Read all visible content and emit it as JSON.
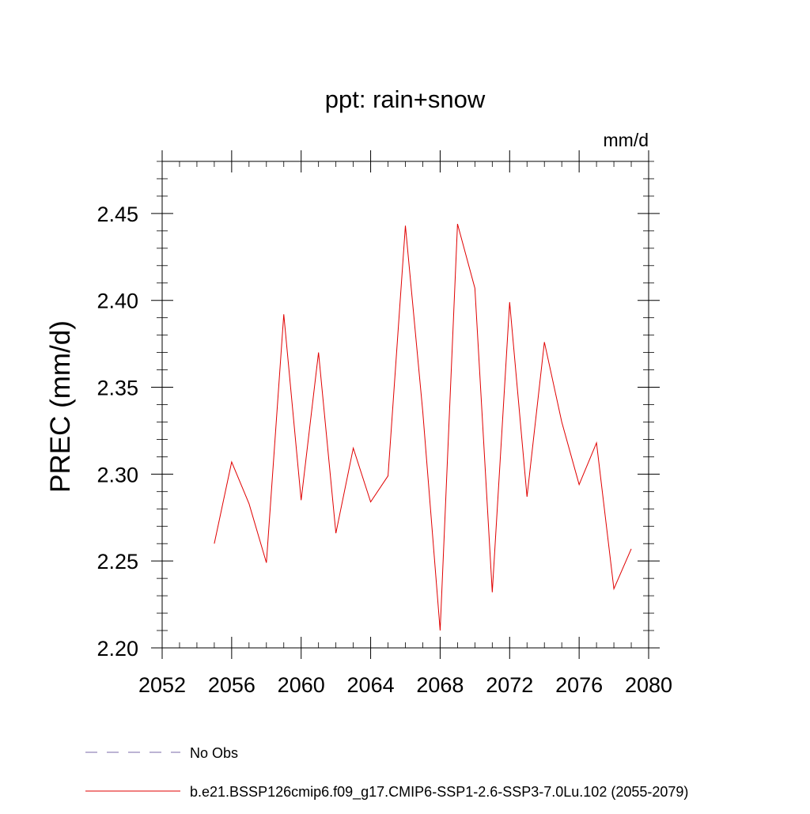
{
  "chart_data": {
    "type": "line",
    "title": "ppt: rain+snow",
    "units": "mm/d",
    "ylabel": "PREC  (mm/d)",
    "xlabel": "",
    "xlim": [
      2052,
      2080
    ],
    "ylim": [
      2.2,
      2.48
    ],
    "x_ticks": [
      2052,
      2056,
      2060,
      2064,
      2068,
      2072,
      2076,
      2080
    ],
    "x_tick_labels": [
      "2052",
      "2056",
      "2060",
      "2064",
      "2068",
      "2072",
      "2076",
      "2080"
    ],
    "y_ticks": [
      2.2,
      2.25,
      2.3,
      2.35,
      2.4,
      2.45
    ],
    "y_tick_labels": [
      "2.20",
      "2.25",
      "2.30",
      "2.35",
      "2.40",
      "2.45"
    ],
    "grid": false,
    "legend_placement": "bottom",
    "series": [
      {
        "name": "b.e21.BSSP126cmip6.f09_g17.CMIP6-SSP1-2.6-SSP3-7.0Lu.102 (2055-2079)",
        "color": "#e00000",
        "style": "solid",
        "x": [
          2055,
          2056,
          2057,
          2058,
          2059,
          2060,
          2061,
          2062,
          2063,
          2064,
          2065,
          2066,
          2067,
          2068,
          2069,
          2070,
          2071,
          2072,
          2073,
          2074,
          2075,
          2076,
          2077,
          2078,
          2079
        ],
        "values": [
          2.26,
          2.307,
          2.283,
          2.249,
          2.392,
          2.285,
          2.37,
          2.266,
          2.315,
          2.284,
          2.299,
          2.443,
          2.336,
          2.21,
          2.444,
          2.407,
          2.232,
          2.399,
          2.287,
          2.376,
          2.33,
          2.294,
          2.318,
          2.234,
          2.257
        ]
      }
    ],
    "legend": [
      {
        "label": "No Obs",
        "color": "#7a6aa8",
        "style": "dashed"
      },
      {
        "label": "b.e21.BSSP126cmip6.f09_g17.CMIP6-SSP1-2.6-SSP3-7.0Lu.102 (2055-2079)",
        "color": "#e00000",
        "style": "solid"
      }
    ]
  }
}
